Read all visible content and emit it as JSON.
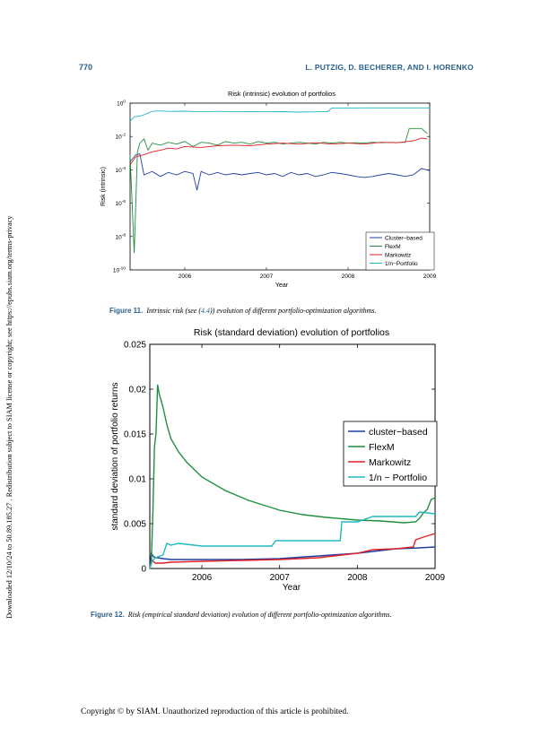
{
  "header": {
    "page_number": "770",
    "authors": "L. PUTZIG, D. BECHERER, AND I. HORENKO"
  },
  "side_note": "Downloaded 12/10/24 to 50.89.185.27 . Redistribution subject to SIAM license or copyright; see https://epubs.siam.org/terms-privacy",
  "figure11": {
    "label": "Figure 11.",
    "caption_pre": "Intrinsic risk (see (",
    "caption_ref": "4.4",
    "caption_post": ")) evolution of different portfolio-optimization algorithms."
  },
  "figure12": {
    "label": "Figure 12.",
    "caption": "Risk (empirical standard deviation) evolution of different portfolio-optimization algorithms."
  },
  "footer": "Copyright © by SIAM. Unauthorized reproduction of this article is prohibited.",
  "chart_data": [
    {
      "type": "line",
      "title": "Risk (intrinsic) evolution of portfolios",
      "xlabel": "Year",
      "ylabel": "Risk (intrinsic)",
      "y_scale": "log",
      "xlim": [
        2005.33,
        2009.0
      ],
      "ylim": [
        1e-10,
        1
      ],
      "x_ticks": [
        2006,
        2007,
        2008,
        2009
      ],
      "y_ticks": [
        {
          "base": "10",
          "exp": "0",
          "value": 1
        },
        {
          "base": "10",
          "exp": "-2",
          "value": 0.01
        },
        {
          "base": "10",
          "exp": "-4",
          "value": 0.0001
        },
        {
          "base": "10",
          "exp": "-6",
          "value": 1e-06
        },
        {
          "base": "10",
          "exp": "-8",
          "value": 1e-08
        },
        {
          "base": "10",
          "exp": "-10",
          "value": 1e-10
        }
      ],
      "legend_position": "bottom-right",
      "series": [
        {
          "name": "Cluster–based",
          "color": "#1f3f9f",
          "x": [
            2005.33,
            2005.4,
            2005.45,
            2005.5,
            2005.6,
            2005.7,
            2005.8,
            2005.9,
            2006.0,
            2006.1,
            2006.15,
            2006.2,
            2006.3,
            2006.4,
            2006.5,
            2006.6,
            2006.7,
            2006.8,
            2006.9,
            2007.0,
            2007.1,
            2007.2,
            2007.3,
            2007.4,
            2007.5,
            2007.6,
            2007.7,
            2007.8,
            2007.9,
            2008.0,
            2008.1,
            2008.2,
            2008.3,
            2008.4,
            2008.5,
            2008.6,
            2008.7,
            2008.8,
            2008.9,
            2009.0
          ],
          "y": [
            0.0003,
            0.0008,
            0.0009,
            5e-05,
            8e-05,
            4e-05,
            7e-05,
            5e-05,
            8e-05,
            6e-05,
            6e-06,
            8e-05,
            5e-05,
            7e-05,
            5e-05,
            6e-05,
            5e-05,
            6e-05,
            7e-05,
            5e-05,
            6e-05,
            4e-05,
            7e-05,
            5e-05,
            6e-05,
            4e-05,
            5e-05,
            7e-05,
            6e-05,
            5e-05,
            4e-05,
            3.5e-05,
            4e-05,
            5e-05,
            6e-05,
            5e-05,
            4e-05,
            5e-05,
            0.00012,
            9e-05
          ]
        },
        {
          "name": "FlexM",
          "color": "#1f8f3f",
          "x": [
            2005.33,
            2005.38,
            2005.42,
            2005.45,
            2005.5,
            2005.55,
            2005.6,
            2005.7,
            2005.8,
            2005.9,
            2006.0,
            2006.1,
            2006.2,
            2006.3,
            2006.4,
            2006.5,
            2006.6,
            2006.7,
            2006.8,
            2006.9,
            2007.0,
            2007.1,
            2007.2,
            2007.3,
            2007.4,
            2007.5,
            2007.6,
            2007.7,
            2007.8,
            2007.9,
            2008.0,
            2008.1,
            2008.2,
            2008.3,
            2008.4,
            2008.5,
            2008.6,
            2008.7,
            2008.75,
            2008.8,
            2008.9,
            2008.97
          ],
          "y": [
            0.0008,
            1e-09,
            0.0012,
            0.004,
            0.007,
            0.0015,
            0.004,
            0.003,
            0.0045,
            0.0035,
            0.005,
            0.0025,
            0.0045,
            0.004,
            0.003,
            0.005,
            0.004,
            0.0045,
            0.0035,
            0.005,
            0.004,
            0.0045,
            0.0035,
            0.004,
            0.0045,
            0.004,
            0.0035,
            0.0045,
            0.004,
            0.0045,
            0.004,
            0.0042,
            0.004,
            0.0045,
            0.0042,
            0.0044,
            0.0043,
            0.0045,
            0.03,
            0.03,
            0.03,
            0.015
          ]
        },
        {
          "name": "Markowitz",
          "color": "#e0202a",
          "x": [
            2005.33,
            2005.4,
            2005.5,
            2005.6,
            2005.7,
            2005.8,
            2005.9,
            2006.0,
            2006.2,
            2006.4,
            2006.6,
            2006.8,
            2007.0,
            2007.2,
            2007.4,
            2007.6,
            2007.8,
            2008.0,
            2008.2,
            2008.4,
            2008.6,
            2008.7,
            2008.8,
            2008.9,
            2008.97
          ],
          "y": [
            0.0002,
            0.0006,
            0.0008,
            0.0012,
            0.0015,
            0.002,
            0.0018,
            0.0025,
            0.0022,
            0.0028,
            0.003,
            0.0028,
            0.0035,
            0.004,
            0.0035,
            0.0042,
            0.0035,
            0.004,
            0.0035,
            0.0045,
            0.0042,
            0.0048,
            0.0055,
            0.008,
            0.007
          ]
        },
        {
          "name": "1/n−Portfolio",
          "color": "#20b8c0",
          "x": [
            2005.33,
            2005.38,
            2005.45,
            2005.5,
            2005.6,
            2005.7,
            2005.8,
            2006.0,
            2006.2,
            2006.4,
            2006.6,
            2006.8,
            2007.0,
            2007.2,
            2007.4,
            2007.6,
            2007.75,
            2007.8,
            2008.0,
            2008.2,
            2008.4,
            2008.6,
            2008.8,
            2009.0
          ],
          "y": [
            0.08,
            0.15,
            0.17,
            0.2,
            0.32,
            0.34,
            0.32,
            0.33,
            0.3,
            0.32,
            0.3,
            0.31,
            0.3,
            0.31,
            0.29,
            0.3,
            0.31,
            0.5,
            0.5,
            0.52,
            0.52,
            0.52,
            0.52,
            0.52
          ]
        }
      ]
    },
    {
      "type": "line",
      "title": "Risk (standard deviation) evolution of portfolios",
      "xlabel": "Year",
      "ylabel": "standard deviation of portfolio returns",
      "xlim": [
        2005.33,
        2009.0
      ],
      "ylim": [
        0,
        0.025
      ],
      "x_ticks": [
        2006,
        2007,
        2008,
        2009
      ],
      "y_ticks": [
        0,
        0.005,
        0.01,
        0.015,
        0.02,
        0.025
      ],
      "y_tick_labels": [
        "0",
        "0.005",
        "0.01",
        "0.015",
        "0.02",
        "0.025"
      ],
      "legend_position": "right",
      "series": [
        {
          "name": "cluster−based",
          "color": "#1f3f9f",
          "x": [
            2005.33,
            2005.35,
            2005.38,
            2005.42,
            2005.5,
            2005.6,
            2006.0,
            2006.5,
            2007.0,
            2007.5,
            2008.0,
            2008.3,
            2008.5,
            2008.8,
            2009.0
          ],
          "y": [
            0,
            0.0017,
            0.0013,
            0.0012,
            0.0011,
            0.001,
            0.001,
            0.001,
            0.0011,
            0.0014,
            0.0017,
            0.002,
            0.0022,
            0.0023,
            0.0024
          ]
        },
        {
          "name": "FlexM",
          "color": "#1f8f3f",
          "x": [
            2005.33,
            2005.35,
            2005.37,
            2005.39,
            2005.41,
            2005.43,
            2005.45,
            2005.5,
            2005.55,
            2005.6,
            2005.7,
            2005.8,
            2006.0,
            2006.3,
            2006.6,
            2007.0,
            2007.3,
            2007.6,
            2008.0,
            2008.3,
            2008.6,
            2008.75,
            2008.8,
            2008.85,
            2008.9,
            2008.95,
            2009.0
          ],
          "y": [
            0,
            0.0008,
            0.0065,
            0.0136,
            0.015,
            0.0205,
            0.0195,
            0.018,
            0.016,
            0.0145,
            0.013,
            0.0119,
            0.0102,
            0.0087,
            0.0076,
            0.0065,
            0.006,
            0.0057,
            0.0054,
            0.0053,
            0.0051,
            0.0052,
            0.0056,
            0.0062,
            0.0066,
            0.0077,
            0.0079
          ]
        },
        {
          "name": "Markowitz",
          "color": "#e0202a",
          "x": [
            2005.33,
            2005.36,
            2005.4,
            2005.5,
            2005.6,
            2006.0,
            2006.5,
            2007.0,
            2007.5,
            2007.8,
            2008.0,
            2008.2,
            2008.5,
            2008.72,
            2008.75,
            2008.85,
            2009.0
          ],
          "y": [
            0,
            0.0009,
            0.0006,
            0.0006,
            0.0007,
            0.0008,
            0.0009,
            0.001,
            0.0012,
            0.0015,
            0.0017,
            0.0021,
            0.0022,
            0.0024,
            0.0032,
            0.0035,
            0.0039
          ]
        },
        {
          "name": "1/n − Portfolio",
          "color": "#20b8c0",
          "x": [
            2005.33,
            2005.36,
            2005.4,
            2005.5,
            2005.55,
            2005.6,
            2005.7,
            2006.0,
            2006.5,
            2006.9,
            2006.95,
            2007.5,
            2007.78,
            2007.8,
            2008.0,
            2008.1,
            2008.2,
            2008.6,
            2008.75,
            2008.8,
            2009.0
          ],
          "y": [
            0,
            0.0008,
            0.0012,
            0.0015,
            0.0028,
            0.0026,
            0.0028,
            0.0025,
            0.0025,
            0.0025,
            0.0031,
            0.0031,
            0.0031,
            0.0052,
            0.0052,
            0.0055,
            0.0058,
            0.0058,
            0.0058,
            0.0063,
            0.0061
          ]
        }
      ]
    }
  ]
}
